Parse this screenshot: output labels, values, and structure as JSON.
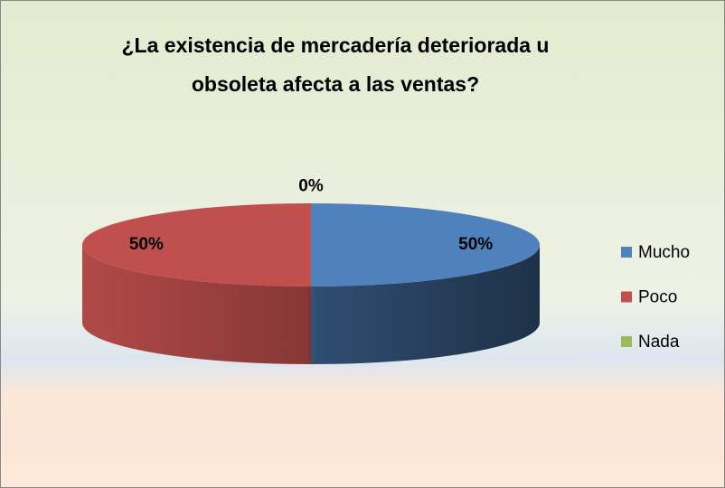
{
  "chart_data": {
    "type": "pie3d",
    "title": "¿La existencia de mercadería deteriorada u\nobsoleta afecta a las ventas?",
    "categories": [
      "Mucho",
      "Poco",
      "Nada"
    ],
    "values": [
      50,
      50,
      0
    ],
    "value_labels": [
      "50%",
      "50%",
      "0%"
    ],
    "colors": [
      "#4f81bd",
      "#c0504d",
      "#9bbb59"
    ],
    "legend": "right"
  }
}
